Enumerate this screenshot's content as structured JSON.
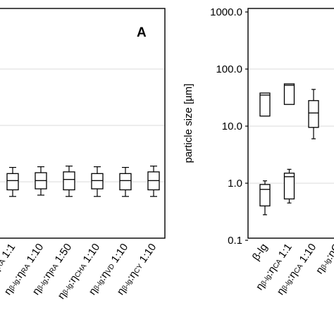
{
  "chart_data": [
    {
      "panel_label": "A",
      "type": "box",
      "grid": true,
      "categories": [
        {
          "parts": [
            {
              "t": "η"
            },
            {
              "t": "β-lg",
              "sub": true
            },
            {
              "t": ":η"
            },
            {
              "t": "RA",
              "sub": true
            },
            {
              "t": " 1:1"
            }
          ]
        },
        {
          "parts": [
            {
              "t": "η"
            },
            {
              "t": "β-lg",
              "sub": true
            },
            {
              "t": ":η"
            },
            {
              "t": "RA",
              "sub": true
            },
            {
              "t": " 1:10"
            }
          ]
        },
        {
          "parts": [
            {
              "t": "η"
            },
            {
              "t": "β-lg",
              "sub": true
            },
            {
              "t": ":η"
            },
            {
              "t": "RA",
              "sub": true
            },
            {
              "t": " 1:50"
            }
          ]
        },
        {
          "parts": [
            {
              "t": "η"
            },
            {
              "t": "β-lg",
              "sub": true
            },
            {
              "t": ":η"
            },
            {
              "t": "CHA",
              "sub": true
            },
            {
              "t": " 1:10"
            }
          ]
        },
        {
          "parts": [
            {
              "t": "η"
            },
            {
              "t": "β-lg",
              "sub": true
            },
            {
              "t": ":η"
            },
            {
              "t": "VD",
              "sub": true
            },
            {
              "t": " 1:10"
            }
          ]
        },
        {
          "parts": [
            {
              "t": "η"
            },
            {
              "t": "β-lg",
              "sub": true
            },
            {
              "t": ":η"
            },
            {
              "t": "CY",
              "sub": true
            },
            {
              "t": " 1:10"
            }
          ]
        }
      ],
      "boxes": [
        {
          "min": 0.55,
          "q1": 0.72,
          "median": 1.05,
          "q3": 1.4,
          "max": 1.8
        },
        {
          "min": 0.58,
          "q1": 0.75,
          "median": 1.05,
          "q3": 1.45,
          "max": 1.85
        },
        {
          "min": 0.55,
          "q1": 0.72,
          "median": 1.1,
          "q3": 1.5,
          "max": 1.9
        },
        {
          "min": 0.55,
          "q1": 0.75,
          "median": 1.05,
          "q3": 1.4,
          "max": 1.85
        },
        {
          "min": 0.55,
          "q1": 0.72,
          "median": 1.05,
          "q3": 1.4,
          "max": 1.8
        },
        {
          "min": 0.55,
          "q1": 0.72,
          "median": 1.05,
          "q3": 1.5,
          "max": 1.9
        }
      ]
    },
    {
      "type": "box",
      "scale": "log",
      "ylabel": "particle size  [µm]",
      "ylim": [
        0.1,
        1000
      ],
      "grid": true,
      "y_ticks": [
        "1000.0",
        "100.0",
        "10.0",
        "1.0",
        "0.1"
      ],
      "categories": [
        {
          "parts": [
            {
              "t": "β-lg"
            }
          ]
        },
        {
          "parts": [
            {
              "t": "η"
            },
            {
              "t": "β-lg",
              "sub": true
            },
            {
              "t": ":η"
            },
            {
              "t": "CA",
              "sub": true
            },
            {
              "t": " 1:1"
            }
          ]
        },
        {
          "parts": [
            {
              "t": "η"
            },
            {
              "t": "β-lg",
              "sub": true
            },
            {
              "t": ":η"
            },
            {
              "t": "CA",
              "sub": true
            },
            {
              "t": " 1:10"
            }
          ]
        },
        {
          "parts": [
            {
              "t": "η"
            },
            {
              "t": "β-lg",
              "sub": true
            },
            {
              "t": ":η"
            },
            {
              "t": "C"
            }
          ]
        }
      ],
      "boxes": [
        {
          "min": 0.28,
          "q1": 0.4,
          "median": 0.78,
          "q3": 0.95,
          "max": 1.1
        },
        {
          "min": 0.45,
          "q1": 0.53,
          "median": 1.3,
          "q3": 1.5,
          "max": 1.75
        },
        {
          "min": 6.0,
          "q1": 9.5,
          "median": 17.0,
          "q3": 28.0,
          "max": 44.0
        }
      ],
      "upper_boxes": [
        {
          "q1": 15.0,
          "median": 35.0,
          "q3": 38.0
        },
        {
          "q1": 24.0,
          "median": 52.0,
          "q3": 55.0
        }
      ]
    }
  ]
}
